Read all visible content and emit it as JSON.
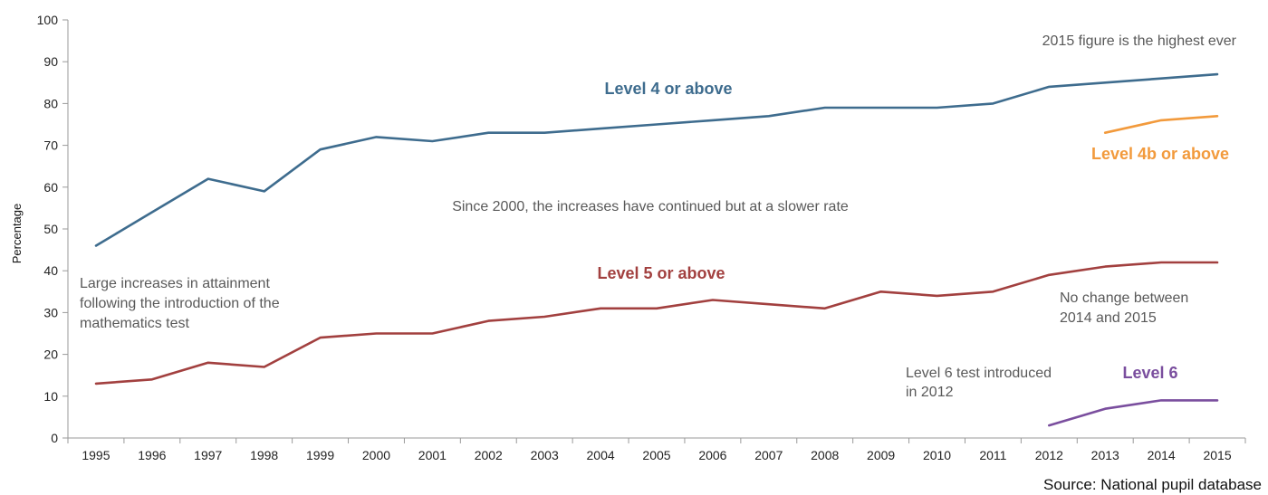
{
  "chart_data": {
    "type": "line",
    "title": "",
    "xlabel": "",
    "ylabel": "Percentage",
    "ylim": [
      0,
      100
    ],
    "yticks": [
      0,
      10,
      20,
      30,
      40,
      50,
      60,
      70,
      80,
      90,
      100
    ],
    "categories": [
      "1995",
      "1996",
      "1997",
      "1998",
      "1999",
      "2000",
      "2001",
      "2002",
      "2003",
      "2004",
      "2005",
      "2006",
      "2007",
      "2008",
      "2009",
      "2010",
      "2011",
      "2012",
      "2013",
      "2014",
      "2015"
    ],
    "grid": false,
    "series": [
      {
        "name": "Level 4 or above",
        "color": "#3E6C8E",
        "values": [
          46,
          54,
          62,
          59,
          69,
          72,
          71,
          73,
          73,
          74,
          75,
          76,
          77,
          79,
          79,
          79,
          80,
          84,
          85,
          86,
          87
        ]
      },
      {
        "name": "Level 4b or above",
        "color": "#F29A3C",
        "values": [
          null,
          null,
          null,
          null,
          null,
          null,
          null,
          null,
          null,
          null,
          null,
          null,
          null,
          null,
          null,
          null,
          null,
          null,
          73,
          76,
          77
        ]
      },
      {
        "name": "Level 5 or above",
        "color": "#A2403F",
        "values": [
          13,
          14,
          18,
          17,
          24,
          25,
          25,
          28,
          29,
          31,
          31,
          33,
          32,
          31,
          35,
          34,
          35,
          39,
          41,
          42,
          42
        ]
      },
      {
        "name": "Level 6",
        "color": "#7A4E9E",
        "values": [
          null,
          null,
          null,
          null,
          null,
          null,
          null,
          null,
          null,
          null,
          null,
          null,
          null,
          null,
          null,
          null,
          null,
          3,
          7,
          9,
          9
        ]
      }
    ],
    "annotations": [
      {
        "lines": [
          "2015 figure is the highest ever"
        ]
      },
      {
        "lines": [
          "Since 2000, the increases have continued but at a slower rate"
        ]
      },
      {
        "lines": [
          "Large increases in attainment",
          "following the introduction of the",
          "mathematics test"
        ]
      },
      {
        "lines": [
          "No  change between",
          "2014 and 2015"
        ]
      },
      {
        "lines": [
          "Level 6 test introduced",
          "in 2012"
        ]
      }
    ],
    "source": "Source: National pupil database"
  }
}
